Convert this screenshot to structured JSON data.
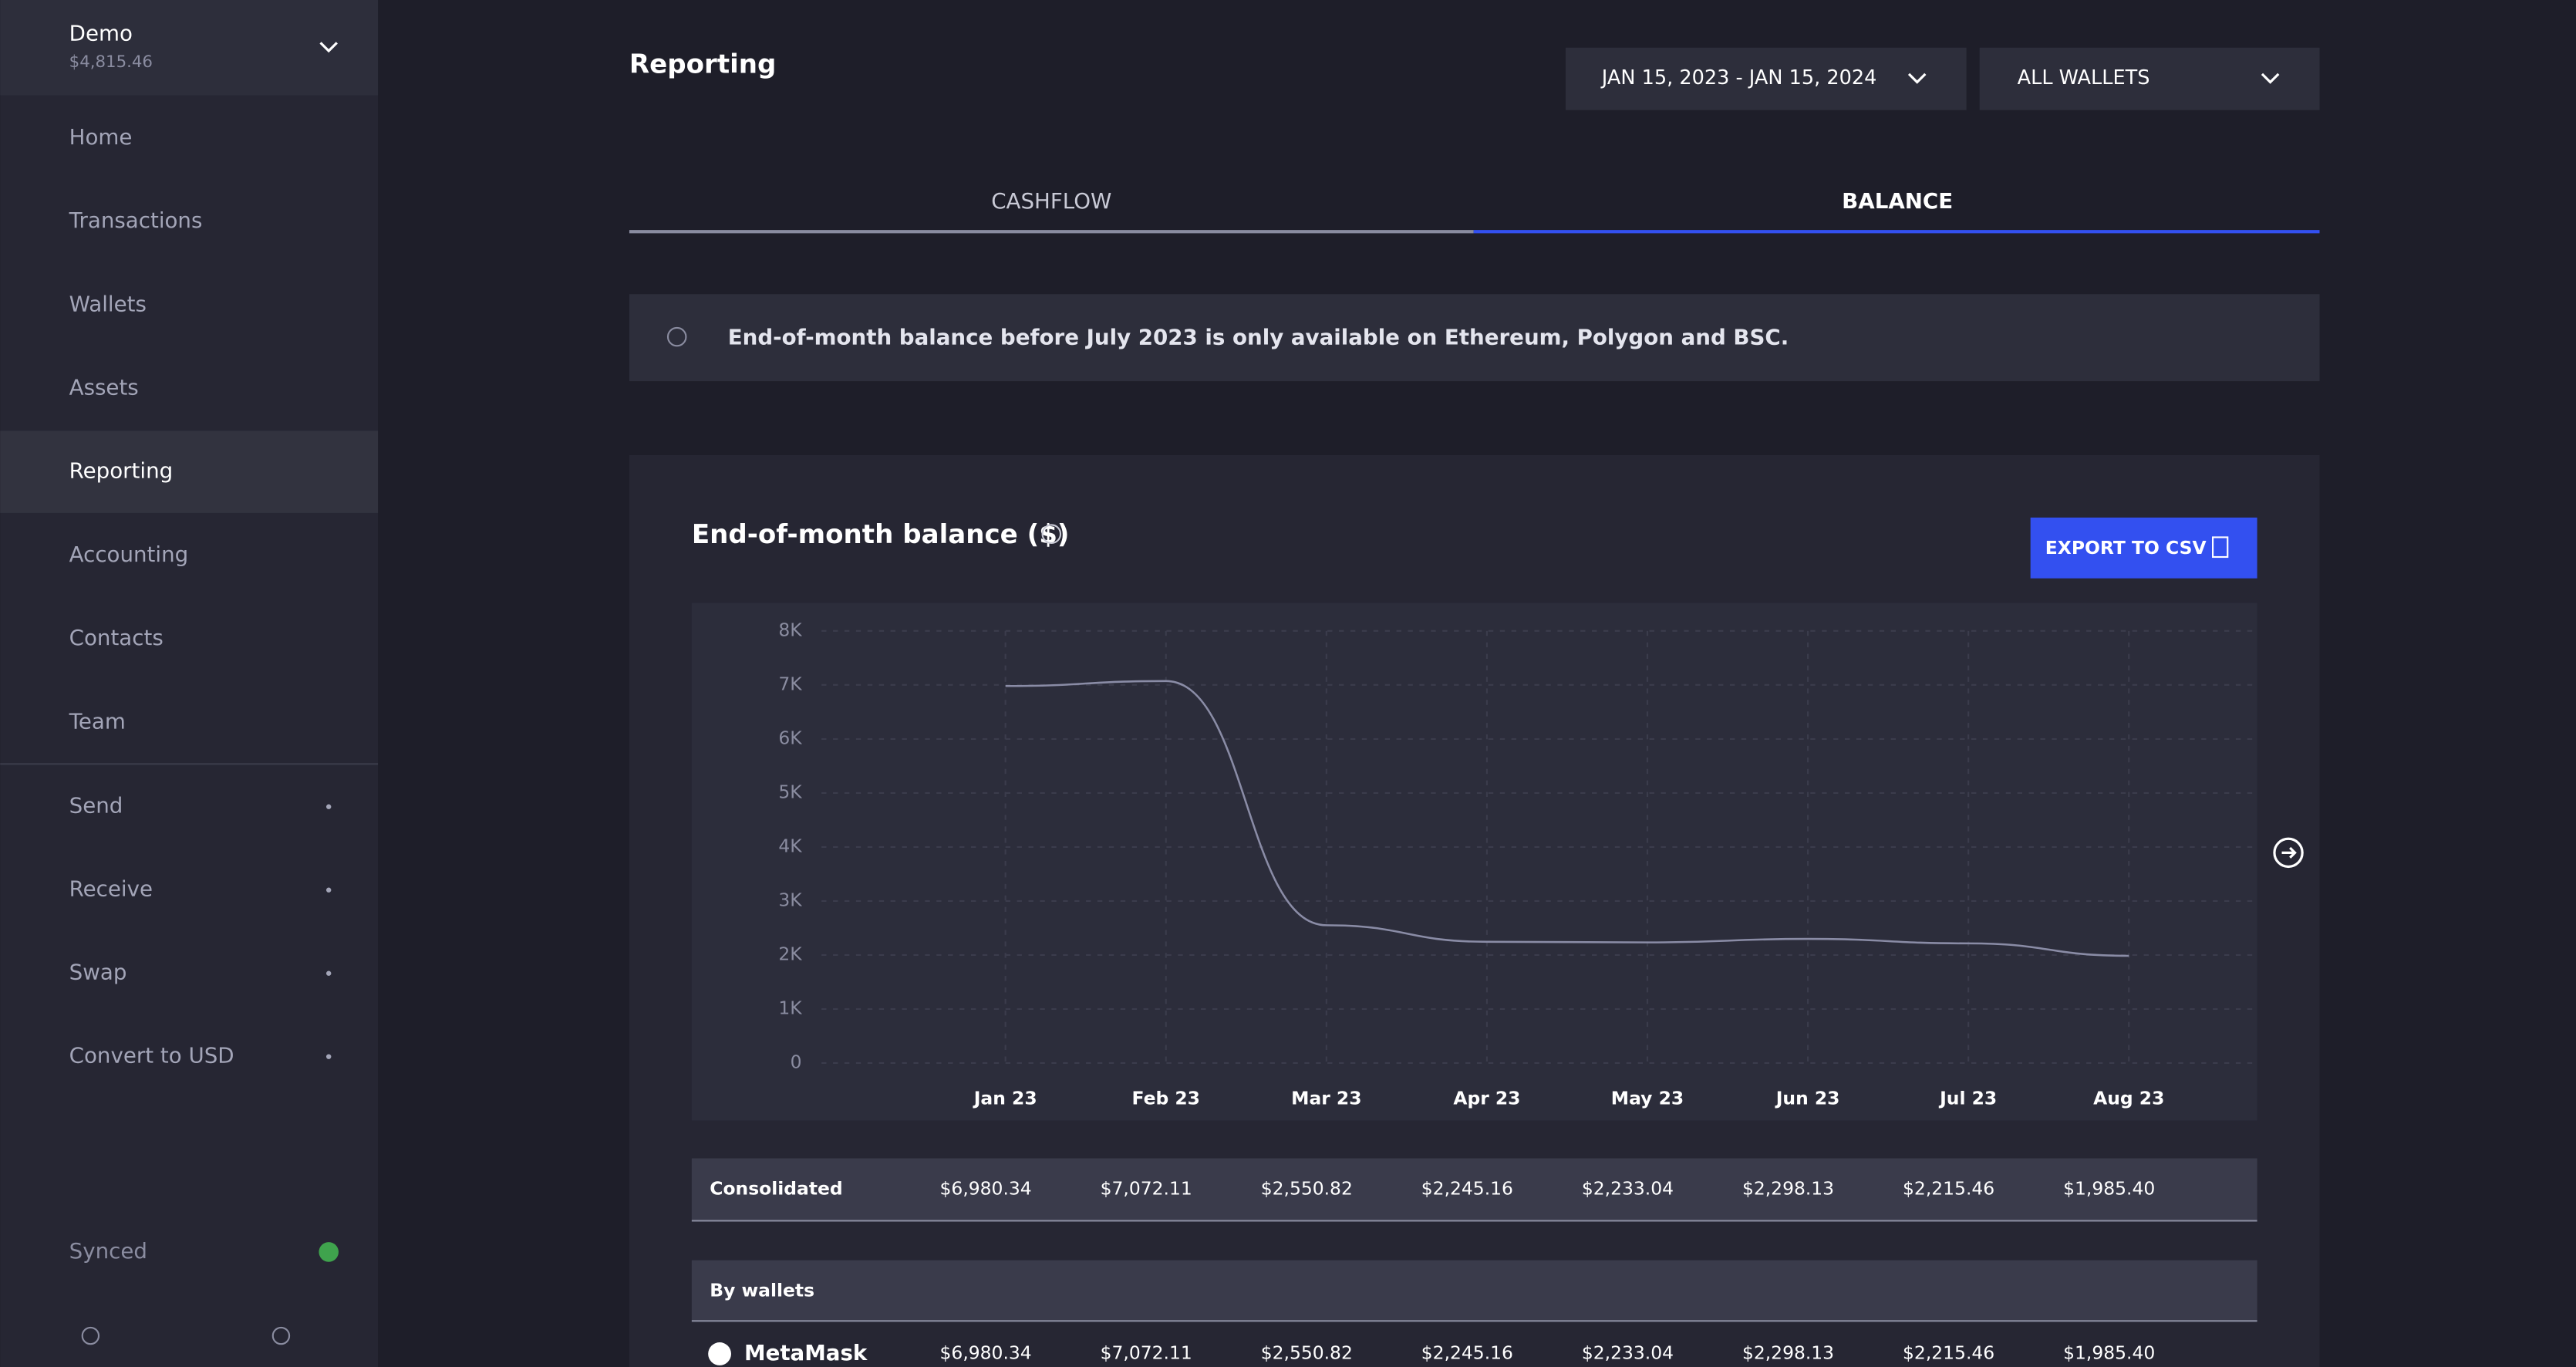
{
  "sidebar": {
    "account": {
      "name": "Demo",
      "balance": "$4,815.46"
    },
    "nav": [
      "Home",
      "Transactions",
      "Wallets",
      "Assets",
      "Reporting",
      "Accounting",
      "Contacts",
      "Team"
    ],
    "active": "Reporting",
    "actions": [
      "Send",
      "Receive",
      "Swap",
      "Convert to USD"
    ],
    "status": "Synced"
  },
  "header": {
    "title": "Reporting",
    "date_range": "JAN 15, 2023 - JAN 15, 2024",
    "wallet_filter": "ALL WALLETS"
  },
  "tabs": [
    "CASHFLOW",
    "BALANCE"
  ],
  "notice": "End-of-month balance before July 2023 is only available on Ethereum, Polygon and BSC.",
  "export_button": "EXPORT TO CSV",
  "table": {
    "section": "By wallets"
  },
  "chart_data": {
    "type": "line",
    "title": "End-of-month balance ($)",
    "categories": [
      "Jan 23",
      "Feb 23",
      "Mar 23",
      "Apr 23",
      "May 23",
      "Jun 23",
      "Jul 23",
      "Aug 23"
    ],
    "series": [
      {
        "name": "Consolidated",
        "color": "#8a8ca6",
        "values": [
          6980.34,
          7072.11,
          2550.82,
          2245.16,
          2233.04,
          2298.13,
          2215.46,
          1985.4
        ],
        "value_labels": [
          "$6,980.34",
          "$7,072.11",
          "$2,550.82",
          "$2,245.16",
          "$2,233.04",
          "$2,298.13",
          "$2,215.46",
          "$1,985.40"
        ]
      },
      {
        "name": "MetaMask",
        "values": [
          6980.34,
          7072.11,
          2550.82,
          2245.16,
          2233.04,
          2298.13,
          2215.46,
          1985.4
        ],
        "value_labels": [
          "$6,980.34",
          "$7,072.11",
          "$2,550.82",
          "$2,245.16",
          "$2,233.04",
          "$2,298.13",
          "$2,215.46",
          "$1,985.40"
        ]
      }
    ],
    "ylim": [
      0,
      8000
    ],
    "yticks": [
      {
        "value": 0,
        "label": "0"
      },
      {
        "value": 1000,
        "label": "1K"
      },
      {
        "value": 2000,
        "label": "2K"
      },
      {
        "value": 3000,
        "label": "3K"
      },
      {
        "value": 4000,
        "label": "4K"
      },
      {
        "value": 5000,
        "label": "5K"
      },
      {
        "value": 6000,
        "label": "6K"
      },
      {
        "value": 7000,
        "label": "7K"
      },
      {
        "value": 8000,
        "label": "8K"
      }
    ],
    "grid": true
  }
}
